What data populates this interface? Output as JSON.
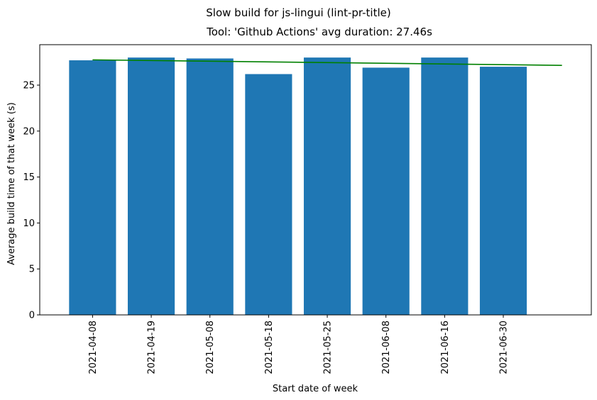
{
  "chart_data": {
    "type": "bar",
    "suptitle": "Slow build for js-lingui (lint-pr-title)",
    "title": "Tool: 'Github Actions' avg duration: 27.46s",
    "xlabel": "Start date of week",
    "ylabel": "Average build time of that week (s)",
    "categories": [
      "2021-04-08",
      "2021-04-19",
      "2021-05-08",
      "2021-05-18",
      "2021-05-25",
      "2021-06-08",
      "2021-06-16",
      "2021-06-30"
    ],
    "values": [
      27.7,
      28.0,
      27.9,
      26.2,
      28.0,
      26.9,
      28.0,
      27.0
    ],
    "bar_color": "#1f77b4",
    "yticks": [
      0,
      5,
      10,
      15,
      20,
      25
    ],
    "ylim": [
      0,
      29.4
    ],
    "grid": false,
    "trend_line": {
      "color": "#008000",
      "x_start_index": 0,
      "x_end_index": 8,
      "y_start": 27.75,
      "y_end": 27.15
    }
  }
}
